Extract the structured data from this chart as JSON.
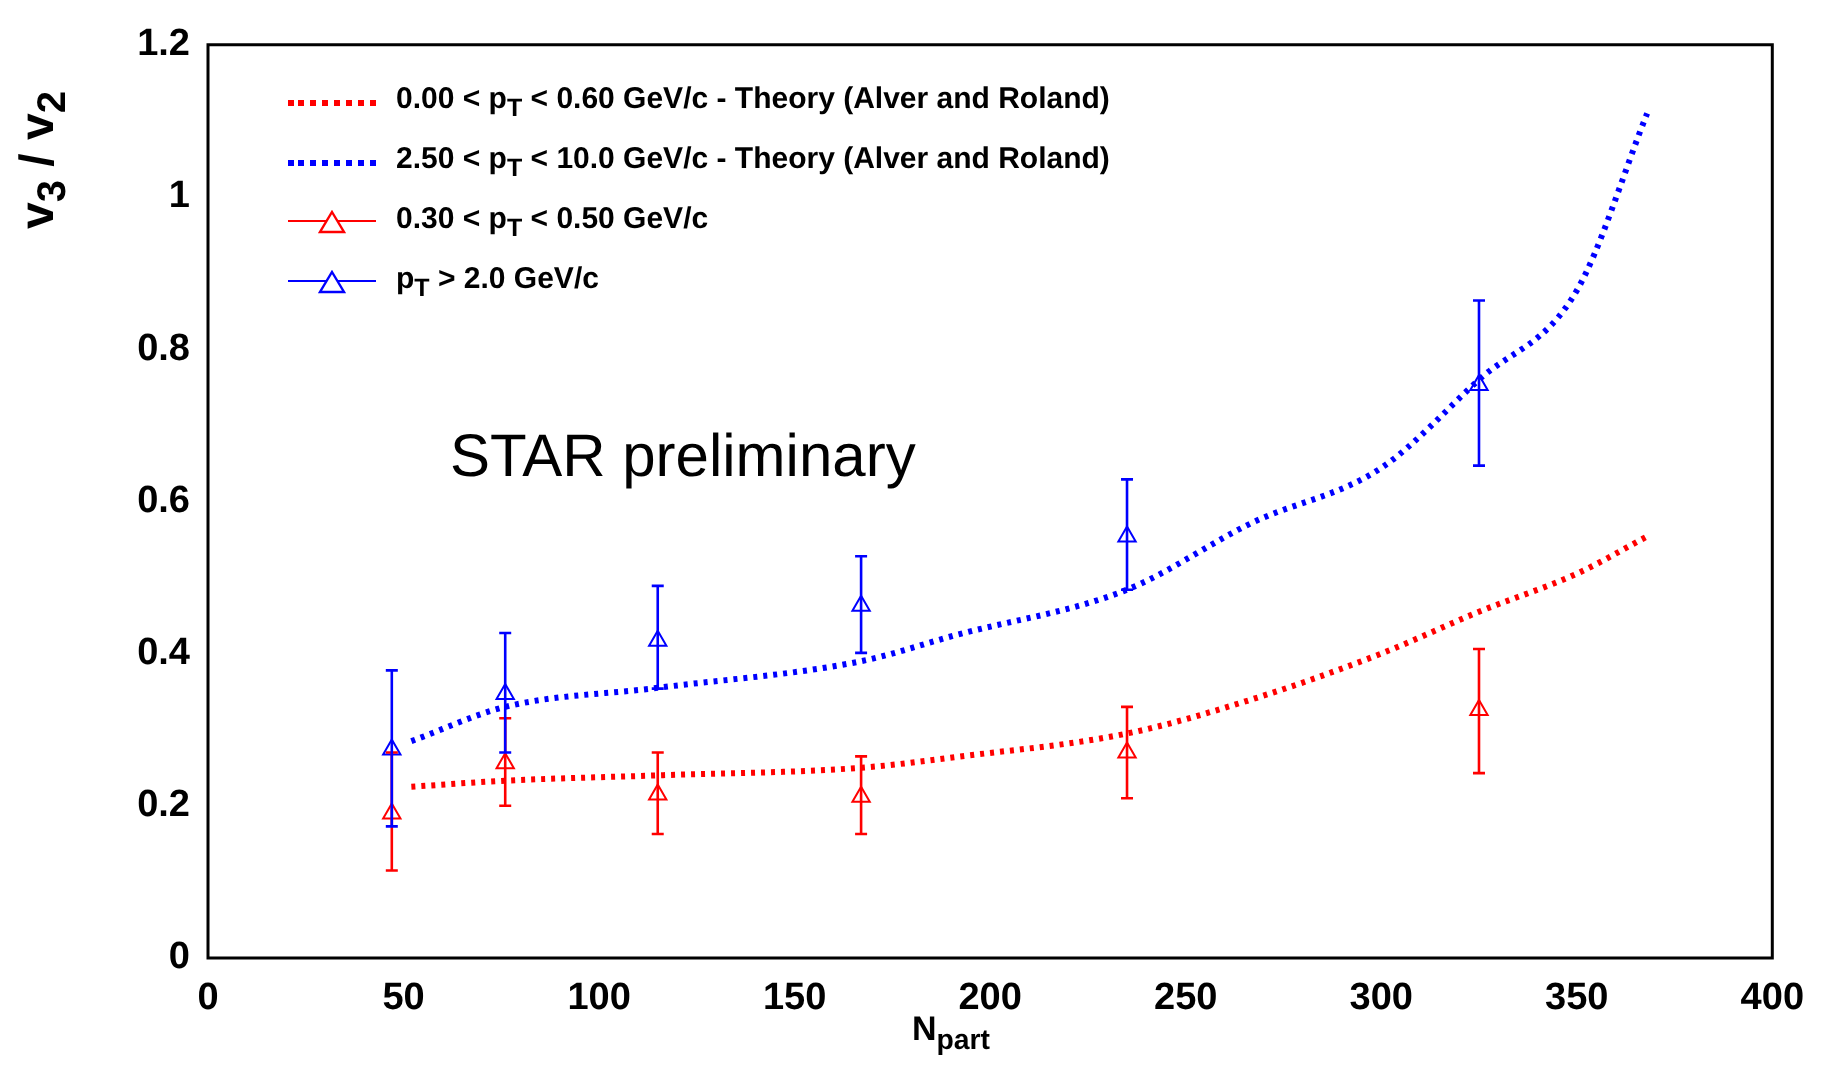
{
  "chart_data": {
    "type": "line",
    "xlabel": "N$_{part}$",
    "ylabel": "v$_{3}$ / v$_{2}$",
    "annotations": [
      "STAR preliminary"
    ],
    "xlim": [
      0,
      400
    ],
    "xticks": [
      0,
      50,
      100,
      150,
      200,
      250,
      300,
      350,
      400
    ],
    "ylim": [
      0,
      1.2
    ],
    "yticks": [
      0,
      0.2,
      0.4,
      0.6,
      0.8,
      1,
      1.2
    ],
    "grid": false,
    "legend": "top left",
    "series": [
      {
        "name": "0.00 < p$_{T}$ < 0.60 GeV/c - Theory (Alver and Roland)",
        "type": "line",
        "line_style": "dotted",
        "marker": "none",
        "color": "#ff0000",
        "x": [
          52,
          76,
          115,
          167,
          191,
          235,
          267,
          300,
          325,
          350,
          368
        ],
        "values": [
          0.225,
          0.233,
          0.24,
          0.25,
          0.264,
          0.295,
          0.34,
          0.4,
          0.455,
          0.505,
          0.554
        ]
      },
      {
        "name": "2.50 < p$_{T}$ < 10.0 GeV/c - Theory (Alver and Roland)",
        "type": "line",
        "line_style": "dotted",
        "marker": "none",
        "color": "#0000ff",
        "x": [
          52,
          76,
          115,
          167,
          191,
          235,
          267,
          300,
          325,
          350,
          368
        ],
        "values": [
          0.285,
          0.33,
          0.355,
          0.39,
          0.424,
          0.484,
          0.572,
          0.644,
          0.76,
          0.877,
          1.11
        ]
      },
      {
        "name": "0.30 < p$_{T}$ < 0.50 GeV/c",
        "type": "scatter",
        "marker": "triangle",
        "color": "#ff0000",
        "x": [
          47,
          76,
          115,
          167,
          235,
          325
        ],
        "values": [
          0.19,
          0.256,
          0.215,
          0.212,
          0.27,
          0.326
        ],
        "errors": [
          [
            0.115,
            0.27
          ],
          [
            0.2,
            0.315
          ],
          [
            0.163,
            0.27
          ],
          [
            0.163,
            0.265
          ],
          [
            0.21,
            0.33
          ],
          [
            0.243,
            0.406
          ]
        ]
      },
      {
        "name": "p$_{T}$ > 2.0 GeV/c",
        "type": "scatter",
        "marker": "triangle",
        "color": "#0000ff",
        "x": [
          47,
          76,
          115,
          167,
          235,
          325
        ],
        "values": [
          0.274,
          0.347,
          0.417,
          0.463,
          0.554,
          0.753
        ],
        "errors": [
          [
            0.173,
            0.378
          ],
          [
            0.27,
            0.427
          ],
          [
            0.354,
            0.489
          ],
          [
            0.401,
            0.528
          ],
          [
            0.484,
            0.629
          ],
          [
            0.647,
            0.864
          ]
        ]
      }
    ]
  }
}
